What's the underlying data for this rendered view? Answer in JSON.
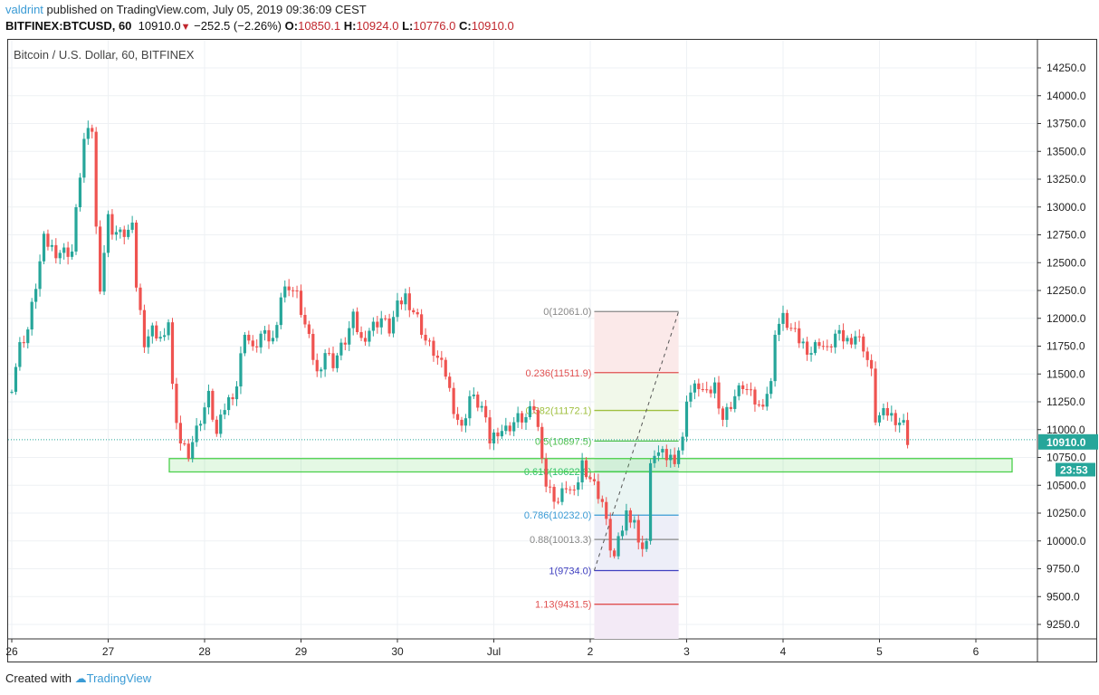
{
  "header": {
    "author": "valdrint",
    "published_text": "published on TradingView.com, July 05, 2019 09:36:09 CEST",
    "symbol": "BITFINEX:BTCUSD, 60",
    "last": "10910.0",
    "change": "−252.5 (−2.26%)",
    "open_label": "O:",
    "open": "10850.1",
    "high_label": "H:",
    "high": "10924.0",
    "low_label": "L:",
    "low": "10776.0",
    "close_label": "C:",
    "close": "10910.0"
  },
  "legend": "Bitcoin / U.S. Dollar, 60, BITFINEX",
  "footer": {
    "created_with": "Created with",
    "brand": "TradingView"
  },
  "colors": {
    "up": "#26a69a",
    "down": "#ef5350",
    "grid": "#eef1f4",
    "zone": "#4cd04c",
    "last_price": "#26a69a"
  },
  "chart_data": {
    "type": "candlestick",
    "start": "2019-06-26 00:00",
    "interval": "60",
    "close_path_hours_price": [
      [
        0,
        11400
      ],
      [
        2,
        11750
      ],
      [
        4,
        11900
      ],
      [
        6,
        12300
      ],
      [
        8,
        12700
      ],
      [
        11,
        12600
      ],
      [
        15,
        12600
      ],
      [
        17,
        13300
      ],
      [
        18,
        13600
      ],
      [
        20,
        13700
      ],
      [
        21,
        12800
      ],
      [
        22,
        12300
      ],
      [
        24,
        12900
      ],
      [
        25,
        12800
      ],
      [
        27,
        12750
      ],
      [
        30,
        12800
      ],
      [
        31,
        12300
      ],
      [
        33,
        11800
      ],
      [
        35,
        11900
      ],
      [
        38,
        11800
      ],
      [
        39,
        12000
      ],
      [
        40,
        11400
      ],
      [
        41,
        11000
      ],
      [
        42,
        10900
      ],
      [
        44,
        10800
      ],
      [
        47,
        11100
      ],
      [
        49,
        11300
      ],
      [
        51,
        10950
      ],
      [
        53,
        11200
      ],
      [
        56,
        11400
      ],
      [
        58,
        11900
      ],
      [
        60,
        11700
      ],
      [
        62,
        11850
      ],
      [
        65,
        11800
      ],
      [
        67,
        12200
      ],
      [
        69,
        12300
      ],
      [
        71,
        12200
      ],
      [
        74,
        11800
      ],
      [
        76,
        11500
      ],
      [
        78,
        11700
      ],
      [
        80,
        11600
      ],
      [
        83,
        11800
      ],
      [
        85,
        12000
      ],
      [
        87,
        11800
      ],
      [
        89,
        11900
      ],
      [
        92,
        12000
      ],
      [
        94,
        11900
      ],
      [
        96,
        12100
      ],
      [
        98,
        12200
      ],
      [
        101,
        12000
      ],
      [
        103,
        11800
      ],
      [
        105,
        11700
      ],
      [
        108,
        11500
      ],
      [
        110,
        11200
      ],
      [
        112,
        11000
      ],
      [
        114,
        11300
      ],
      [
        117,
        11200
      ],
      [
        119,
        10900
      ],
      [
        121,
        11000
      ],
      [
        123,
        11000
      ],
      [
        126,
        11100
      ],
      [
        128,
        11100
      ],
      [
        130,
        11200
      ],
      [
        132,
        10800
      ],
      [
        133,
        10500
      ],
      [
        136,
        10350
      ],
      [
        138,
        10500
      ],
      [
        140,
        10400
      ],
      [
        142,
        10700
      ],
      [
        145,
        10500
      ],
      [
        147,
        10350
      ],
      [
        149,
        9950
      ],
      [
        150,
        9850
      ],
      [
        153,
        10250
      ],
      [
        155,
        10200
      ],
      [
        156,
        9950
      ],
      [
        158,
        10000
      ],
      [
        159,
        10650
      ],
      [
        160,
        10800
      ],
      [
        163,
        10750
      ],
      [
        165,
        10750
      ],
      [
        167,
        10900
      ],
      [
        168,
        11300
      ],
      [
        171,
        11400
      ],
      [
        173,
        11300
      ],
      [
        175,
        11400
      ],
      [
        177,
        11100
      ],
      [
        180,
        11300
      ],
      [
        182,
        11400
      ],
      [
        184,
        11300
      ],
      [
        186,
        11200
      ],
      [
        189,
        11400
      ],
      [
        190,
        11900
      ],
      [
        192,
        12000
      ],
      [
        194,
        11900
      ],
      [
        196,
        11800
      ],
      [
        199,
        11700
      ],
      [
        201,
        11800
      ],
      [
        203,
        11700
      ],
      [
        205,
        11850
      ],
      [
        208,
        11800
      ],
      [
        210,
        11850
      ],
      [
        212,
        11750
      ],
      [
        214,
        11500
      ],
      [
        215,
        11100
      ],
      [
        218,
        11150
      ],
      [
        220,
        11100
      ],
      [
        222,
        11050
      ],
      [
        223,
        10910
      ]
    ],
    "y_ticks": [
      "9250.0",
      "9500.0",
      "9750.0",
      "10000.0",
      "10250.0",
      "10500.0",
      "10750.0",
      "11000.0",
      "11250.0",
      "11500.0",
      "11750.0",
      "12000.0",
      "12250.0",
      "12500.0",
      "12750.0",
      "13000.0",
      "13250.0",
      "13500.0",
      "13750.0",
      "14000.0",
      "14250.0"
    ],
    "ylim": [
      9250,
      14250
    ],
    "x_ticks": [
      "26",
      "27",
      "28",
      "29",
      "30",
      "Jul",
      "2",
      "3",
      "4",
      "5",
      "6"
    ],
    "last_price": "10910.0",
    "countdown": "23:53",
    "support_zone": [
      10620,
      10740
    ],
    "fibonacci": {
      "from": "2019-07-02 01:00",
      "to": "2019-07-02 22:00",
      "levels": [
        {
          "label": "0(12061.0)",
          "price": 12061.0,
          "color": "#888888"
        },
        {
          "label": "0.236(11511.9)",
          "price": 11511.9,
          "color": "#e05050"
        },
        {
          "label": "0.382(11172.1)",
          "price": 11172.1,
          "color": "#a0c040"
        },
        {
          "label": "0.5(10897.5)",
          "price": 10897.5,
          "color": "#50c050"
        },
        {
          "label": "0.618(10622.9)",
          "price": 10622.9,
          "color": "#30c070"
        },
        {
          "label": "0.786(10232.0)",
          "price": 10232.0,
          "color": "#3a9bd5"
        },
        {
          "label": "0.88(10013.3)",
          "price": 10013.3,
          "color": "#888888"
        },
        {
          "label": "1(9734.0)",
          "price": 9734.0,
          "color": "#4040c0"
        },
        {
          "label": "1.13(9431.5)",
          "price": 9431.5,
          "color": "#e05050"
        }
      ]
    }
  }
}
